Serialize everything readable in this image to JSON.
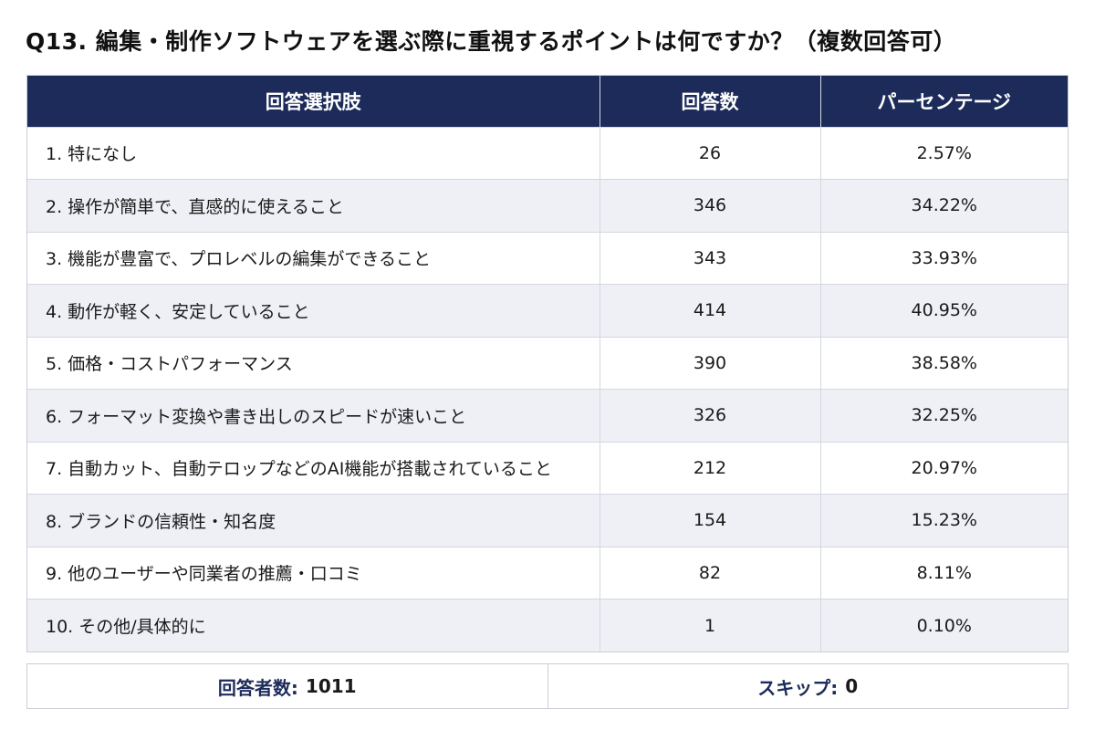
{
  "title": "Q13. 編集・制作ソフトウェアを選ぶ際に重視するポイントは何ですか？（複数回答可）",
  "table": {
    "headers": [
      "回答選択肢",
      "回答数",
      "パーセンテージ"
    ],
    "rows": [
      {
        "choice": "1. 特になし",
        "count": "26",
        "percent": "2.57%"
      },
      {
        "choice": "2. 操作が簡単で、直感的に使えること",
        "count": "346",
        "percent": "34.22%"
      },
      {
        "choice": "3. 機能が豊富で、プロレベルの編集ができること",
        "count": "343",
        "percent": "33.93%"
      },
      {
        "choice": "4. 動作が軽く、安定していること",
        "count": "414",
        "percent": "40.95%"
      },
      {
        "choice": "5. 価格・コストパフォーマンス",
        "count": "390",
        "percent": "38.58%"
      },
      {
        "choice": "6. フォーマット変換や書き出しのスピードが速いこと",
        "count": "326",
        "percent": "32.25%"
      },
      {
        "choice": "7. 自動カット、自動テロップなどのAI機能が搭載されていること",
        "count": "212",
        "percent": "20.97%"
      },
      {
        "choice": "8. ブランドの信頼性・知名度",
        "count": "154",
        "percent": "15.23%"
      },
      {
        "choice": "9. 他のユーザーや同業者の推薦・口コミ",
        "count": "82",
        "percent": "8.11%"
      },
      {
        "choice": "10. その他/具体的に",
        "count": "1",
        "percent": "0.10%"
      }
    ]
  },
  "summary": {
    "respondents_label": "回答者数:",
    "respondents_value": "1011",
    "skip_label": "スキップ:",
    "skip_value": "0"
  },
  "colors": {
    "header_bg": "#1c2b5a",
    "stripe_bg": "#eef0f6"
  }
}
